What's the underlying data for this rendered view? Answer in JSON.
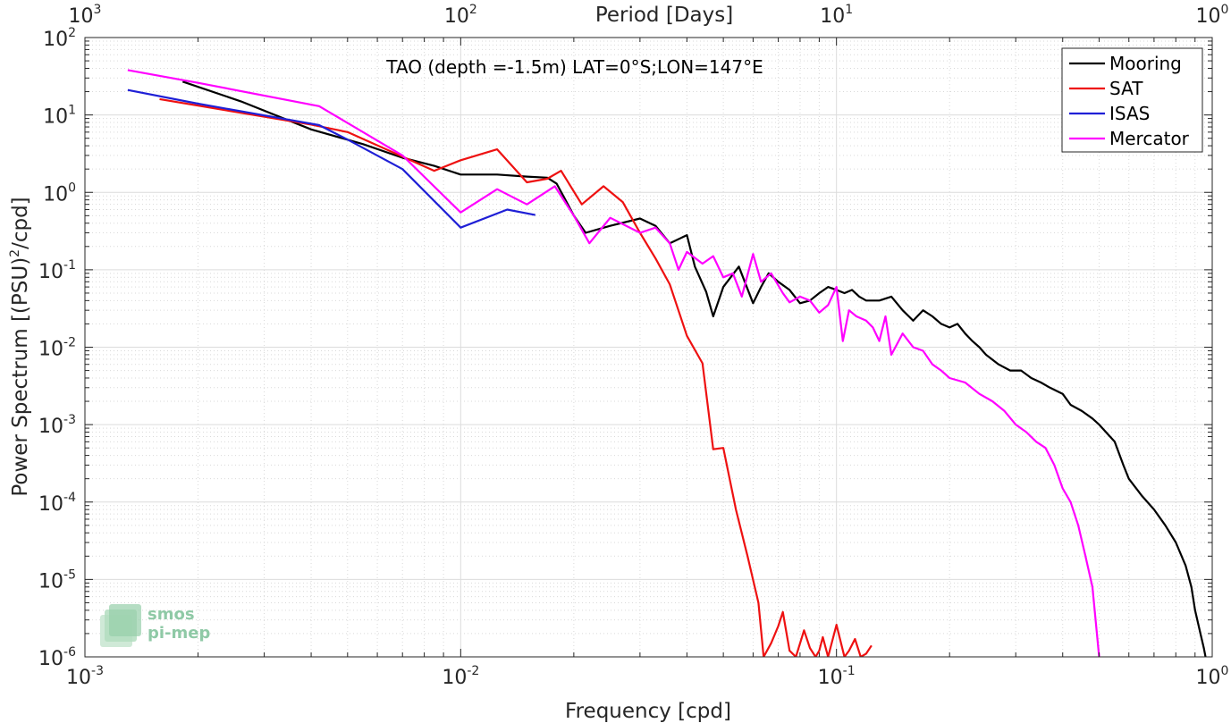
{
  "chart_data": {
    "type": "line",
    "title": "TAO (depth =-1.5m) LAT=0°S;LON=147°E",
    "xlabel": "Frequency [cpd]",
    "ylabel_main": "Power Spectrum [(PSU)",
    "ylabel_sup": "2",
    "ylabel_tail": "/cpd]",
    "top_xlabel": "Period [Days]",
    "xscale": "log",
    "yscale": "log",
    "xlim": [
      0.001,
      1
    ],
    "ylim": [
      1e-06,
      100
    ],
    "grid": true,
    "legend_position": "top-right",
    "x_ticks": [
      {
        "value": 0.001,
        "base": "10",
        "exp": "-3"
      },
      {
        "value": 0.01,
        "base": "10",
        "exp": "-2"
      },
      {
        "value": 0.1,
        "base": "10",
        "exp": "-1"
      },
      {
        "value": 1,
        "base": "10",
        "exp": "0"
      }
    ],
    "top_ticks": [
      {
        "value": 0.001,
        "base": "10",
        "exp": "3"
      },
      {
        "value": 0.01,
        "base": "10",
        "exp": "2"
      },
      {
        "value": 0.1,
        "base": "10",
        "exp": "1"
      },
      {
        "value": 1,
        "base": "10",
        "exp": "0"
      }
    ],
    "y_ticks": [
      {
        "value": 100,
        "base": "10",
        "exp": "2"
      },
      {
        "value": 10,
        "base": "10",
        "exp": "1"
      },
      {
        "value": 1,
        "base": "10",
        "exp": "0"
      },
      {
        "value": 0.1,
        "base": "10",
        "exp": "-1"
      },
      {
        "value": 0.01,
        "base": "10",
        "exp": "-2"
      },
      {
        "value": 0.001,
        "base": "10",
        "exp": "-3"
      },
      {
        "value": 0.0001,
        "base": "10",
        "exp": "-4"
      },
      {
        "value": 1e-05,
        "base": "10",
        "exp": "-5"
      },
      {
        "value": 1e-06,
        "base": "10",
        "exp": "-6"
      }
    ],
    "series": [
      {
        "name": "Mooring",
        "color": "#000000",
        "x": [
          0.00182,
          0.0026,
          0.004,
          0.0055,
          0.007,
          0.0085,
          0.01,
          0.0125,
          0.015,
          0.017,
          0.018,
          0.019,
          0.02,
          0.0215,
          0.025,
          0.03,
          0.033,
          0.036,
          0.04,
          0.042,
          0.045,
          0.047,
          0.05,
          0.055,
          0.06,
          0.063,
          0.066,
          0.07,
          0.075,
          0.08,
          0.085,
          0.09,
          0.095,
          0.1,
          0.105,
          0.11,
          0.115,
          0.12,
          0.13,
          0.14,
          0.15,
          0.16,
          0.17,
          0.18,
          0.19,
          0.2,
          0.21,
          0.22,
          0.23,
          0.24,
          0.25,
          0.27,
          0.29,
          0.31,
          0.33,
          0.35,
          0.37,
          0.4,
          0.42,
          0.45,
          0.48,
          0.5,
          0.55,
          0.58,
          0.6,
          0.65,
          0.7,
          0.75,
          0.8,
          0.85,
          0.88,
          0.9,
          0.93,
          0.95,
          0.96
        ],
        "values": [
          27,
          15,
          6.5,
          4.2,
          2.8,
          2.2,
          1.7,
          1.7,
          1.6,
          1.55,
          1.3,
          0.8,
          0.5,
          0.3,
          0.37,
          0.46,
          0.37,
          0.22,
          0.28,
          0.11,
          0.052,
          0.025,
          0.06,
          0.11,
          0.037,
          0.06,
          0.09,
          0.07,
          0.055,
          0.037,
          0.04,
          0.05,
          0.06,
          0.055,
          0.05,
          0.055,
          0.045,
          0.04,
          0.04,
          0.045,
          0.03,
          0.022,
          0.03,
          0.025,
          0.02,
          0.018,
          0.02,
          0.015,
          0.012,
          0.01,
          0.008,
          0.006,
          0.005,
          0.005,
          0.004,
          0.0035,
          0.003,
          0.0025,
          0.0018,
          0.0015,
          0.0012,
          0.001,
          0.0006,
          0.0003,
          0.0002,
          0.00012,
          8e-05,
          5e-05,
          3e-05,
          1.5e-05,
          8e-06,
          4e-06,
          2e-06,
          1.3e-06,
          1e-06
        ]
      },
      {
        "name": "SAT",
        "color": "#ee1111",
        "x": [
          0.00158,
          0.0025,
          0.004,
          0.005,
          0.007,
          0.0085,
          0.01,
          0.0125,
          0.015,
          0.017,
          0.0185,
          0.021,
          0.024,
          0.027,
          0.03,
          0.033,
          0.036,
          0.04,
          0.044,
          0.047,
          0.05,
          0.054,
          0.058,
          0.062,
          0.064,
          0.067,
          0.07,
          0.072,
          0.075,
          0.078,
          0.082,
          0.085,
          0.088,
          0.09,
          0.092,
          0.095,
          0.1,
          0.105,
          0.108,
          0.112,
          0.116,
          0.12,
          0.124
        ],
        "values": [
          16,
          11,
          7.5,
          6,
          2.9,
          1.9,
          2.6,
          3.6,
          1.35,
          1.5,
          1.9,
          0.7,
          1.2,
          0.75,
          0.3,
          0.14,
          0.065,
          0.014,
          0.0062,
          0.00048,
          0.0005,
          8e-05,
          2e-05,
          5e-06,
          1e-06,
          1.5e-06,
          2.5e-06,
          3.8e-06,
          1.2e-06,
          1e-06,
          2.2e-06,
          1.3e-06,
          1e-06,
          1.2e-06,
          1.8e-06,
          1e-06,
          2.6e-06,
          1e-06,
          1.2e-06,
          1.7e-06,
          1e-06,
          1.1e-06,
          1.4e-06
        ]
      },
      {
        "name": "ISAS",
        "color": "#1f1fd6",
        "x": [
          0.0013,
          0.002,
          0.0042,
          0.005,
          0.007,
          0.01,
          0.0133,
          0.0158
        ],
        "values": [
          21,
          14,
          7.4,
          4.8,
          2,
          0.35,
          0.6,
          0.51
        ]
      },
      {
        "name": "Mercator",
        "color": "#ff00ff",
        "x": [
          0.0013,
          0.002,
          0.0042,
          0.007,
          0.01,
          0.0125,
          0.015,
          0.0178,
          0.02,
          0.022,
          0.025,
          0.03,
          0.033,
          0.036,
          0.038,
          0.04,
          0.044,
          0.047,
          0.05,
          0.053,
          0.056,
          0.06,
          0.063,
          0.067,
          0.072,
          0.075,
          0.08,
          0.085,
          0.09,
          0.095,
          0.1,
          0.104,
          0.108,
          0.113,
          0.12,
          0.125,
          0.13,
          0.135,
          0.14,
          0.15,
          0.16,
          0.17,
          0.18,
          0.19,
          0.2,
          0.22,
          0.24,
          0.26,
          0.28,
          0.3,
          0.32,
          0.34,
          0.36,
          0.38,
          0.4,
          0.42,
          0.44,
          0.46,
          0.48,
          0.5
        ],
        "values": [
          38,
          26,
          13,
          3,
          0.55,
          1.1,
          0.7,
          1.2,
          0.5,
          0.22,
          0.47,
          0.3,
          0.35,
          0.22,
          0.1,
          0.17,
          0.12,
          0.15,
          0.08,
          0.09,
          0.045,
          0.16,
          0.07,
          0.09,
          0.05,
          0.038,
          0.045,
          0.04,
          0.028,
          0.035,
          0.06,
          0.012,
          0.03,
          0.025,
          0.022,
          0.018,
          0.012,
          0.025,
          0.008,
          0.015,
          0.01,
          0.009,
          0.006,
          0.005,
          0.004,
          0.0035,
          0.0025,
          0.002,
          0.0015,
          0.001,
          0.0008,
          0.0006,
          0.0005,
          0.0003,
          0.00015,
          0.0001,
          5e-05,
          2e-05,
          8e-06,
          1e-06
        ]
      }
    ],
    "logo": {
      "line1": "smos",
      "line2": "pi-mep"
    }
  }
}
